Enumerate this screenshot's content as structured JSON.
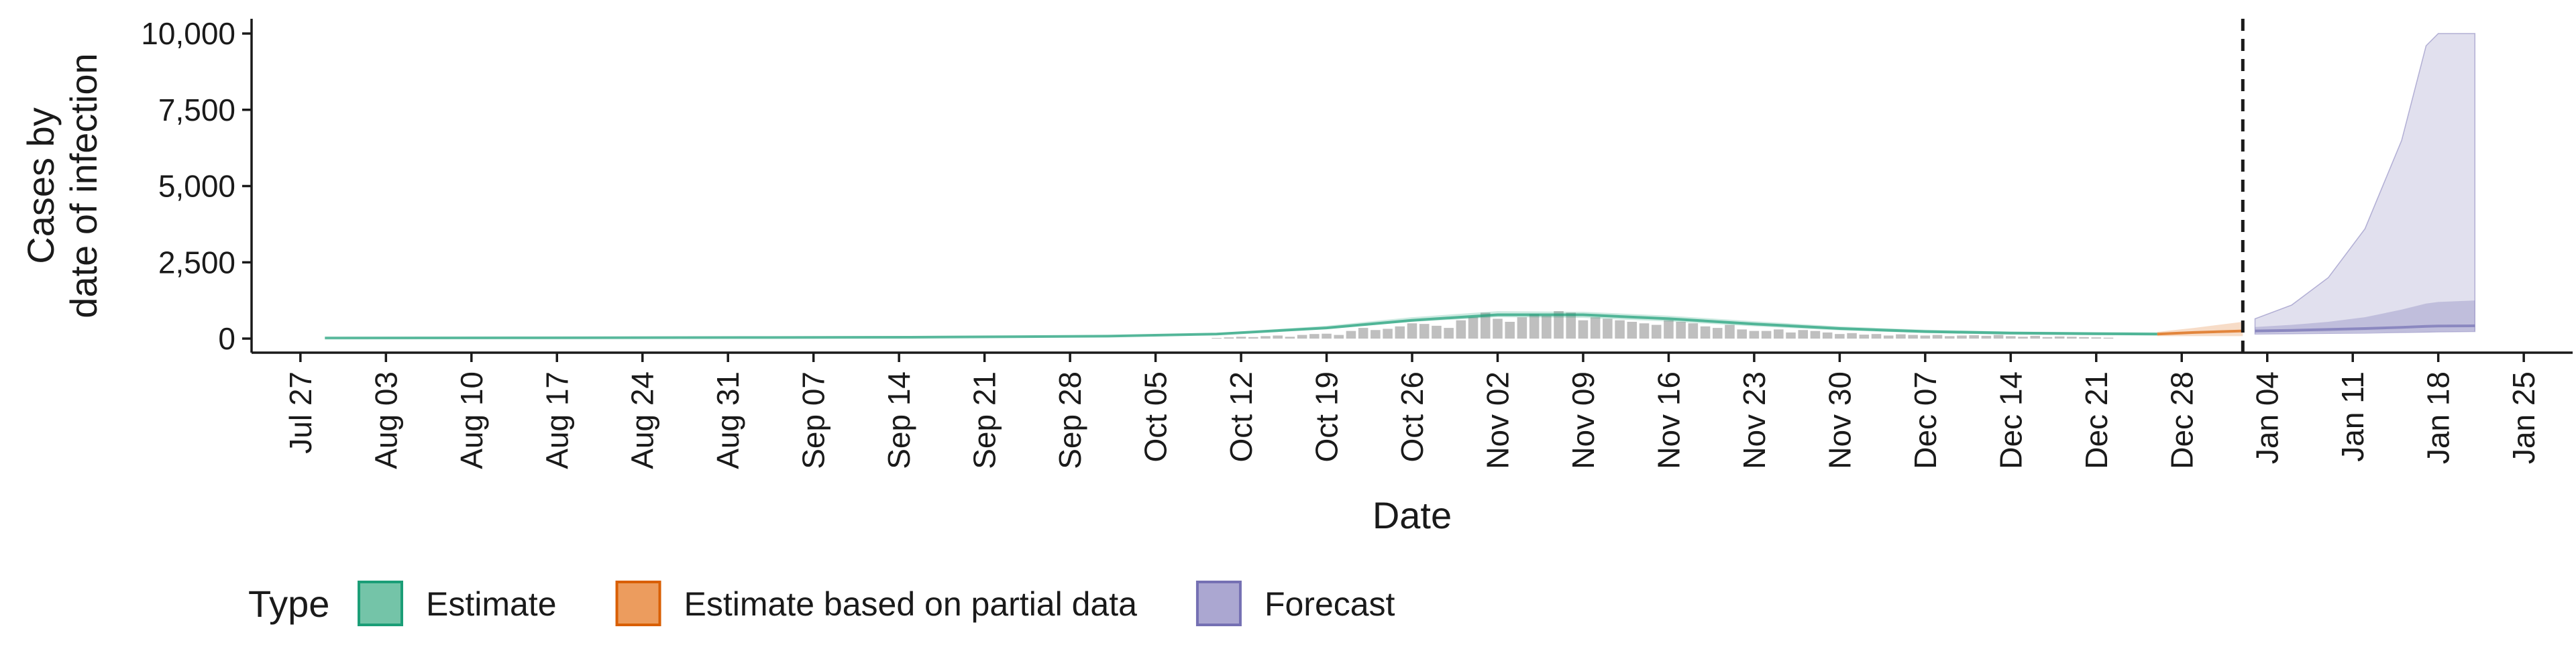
{
  "chart_data": {
    "type": "area",
    "xlabel": "Date",
    "ylabel_lines": [
      "Cases by",
      "date of infection"
    ],
    "x_domain": [
      "2020-07-23",
      "2021-01-29"
    ],
    "ylim": [
      0,
      10000
    ],
    "y_ticks": [
      0,
      2500,
      5000,
      7500,
      10000
    ],
    "y_tick_labels": [
      "0",
      "2,500",
      "5,000",
      "7,500",
      "10,000"
    ],
    "x_ticks": [
      "2020-07-27",
      "2020-08-03",
      "2020-08-10",
      "2020-08-17",
      "2020-08-24",
      "2020-08-31",
      "2020-09-07",
      "2020-09-14",
      "2020-09-21",
      "2020-09-28",
      "2020-10-05",
      "2020-10-12",
      "2020-10-19",
      "2020-10-26",
      "2020-11-02",
      "2020-11-09",
      "2020-11-16",
      "2020-11-23",
      "2020-11-30",
      "2020-12-07",
      "2020-12-14",
      "2020-12-21",
      "2020-12-28",
      "2021-01-04",
      "2021-01-11",
      "2021-01-18",
      "2021-01-25"
    ],
    "x_tick_labels": [
      "Jul 27",
      "Aug 03",
      "Aug 10",
      "Aug 17",
      "Aug 24",
      "Aug 31",
      "Sep 07",
      "Sep 14",
      "Sep 21",
      "Sep 28",
      "Oct 05",
      "Oct 12",
      "Oct 19",
      "Oct 26",
      "Nov 02",
      "Nov 09",
      "Nov 16",
      "Nov 23",
      "Nov 30",
      "Dec 07",
      "Dec 14",
      "Dec 21",
      "Dec 28",
      "Jan 04",
      "Jan 11",
      "Jan 18",
      "Jan 25"
    ],
    "forecast_start_line": "2021-01-02",
    "grid": false,
    "legend": {
      "title": "Type",
      "position": "bottom",
      "entries": [
        {
          "label": "Estimate",
          "fill": "#74c4a8",
          "stroke": "#1b9e77"
        },
        {
          "label": "Estimate based on partial data",
          "fill": "#ec9c5e",
          "stroke": "#d95f02"
        },
        {
          "label": "Forecast",
          "fill": "#aba7d1",
          "stroke": "#7570b3"
        }
      ]
    },
    "colors": {
      "estimate": "#1b9e77",
      "partial": "#d95f02",
      "forecast": "#7570b3",
      "bars": "#a9a9a9"
    },
    "reported_cases": {
      "start": "2020-10-10",
      "values": [
        20,
        40,
        60,
        50,
        80,
        100,
        60,
        120,
        150,
        160,
        120,
        250,
        350,
        280,
        320,
        400,
        500,
        480,
        420,
        350,
        600,
        700,
        850,
        650,
        550,
        700,
        800,
        750,
        900,
        850,
        600,
        700,
        650,
        600,
        550,
        500,
        450,
        600,
        550,
        500,
        400,
        350,
        450,
        300,
        250,
        250,
        300,
        200,
        280,
        250,
        200,
        150,
        180,
        130,
        150,
        100,
        140,
        120,
        100,
        120,
        80,
        100,
        110,
        90,
        120,
        80,
        60,
        90,
        50,
        70,
        60,
        50,
        40,
        30
      ]
    },
    "series": [
      {
        "name": "Estimate",
        "dates": [
          "2020-07-29",
          "2020-08-15",
          "2020-09-01",
          "2020-09-15",
          "2020-10-01",
          "2020-10-10",
          "2020-10-19",
          "2020-10-26",
          "2020-11-02",
          "2020-11-09",
          "2020-11-16",
          "2020-11-23",
          "2020-11-30",
          "2020-12-07",
          "2020-12-14",
          "2020-12-21",
          "2020-12-26"
        ],
        "median": [
          20,
          25,
          35,
          45,
          80,
          150,
          350,
          600,
          780,
          780,
          650,
          480,
          330,
          230,
          180,
          160,
          150
        ],
        "lower": [
          15,
          20,
          28,
          38,
          65,
          130,
          310,
          550,
          700,
          680,
          560,
          400,
          270,
          180,
          130,
          110,
          100
        ],
        "upper": [
          30,
          35,
          45,
          60,
          100,
          180,
          420,
          700,
          900,
          880,
          750,
          570,
          400,
          290,
          230,
          210,
          200
        ]
      },
      {
        "name": "Estimate based on partial data",
        "dates": [
          "2020-12-26",
          "2020-12-29",
          "2021-01-02"
        ],
        "median": [
          150,
          200,
          250
        ],
        "lower": [
          80,
          80,
          80
        ],
        "upper": [
          220,
          350,
          550
        ]
      },
      {
        "name": "Forecast",
        "dates": [
          "2021-01-03",
          "2021-01-06",
          "2021-01-09",
          "2021-01-12",
          "2021-01-15",
          "2021-01-17",
          "2021-01-18",
          "2021-01-21"
        ],
        "median": [
          250,
          270,
          300,
          330,
          370,
          400,
          410,
          420
        ],
        "lower": [
          150,
          160,
          170,
          180,
          200,
          210,
          220,
          230
        ],
        "upper": [
          650,
          1100,
          2000,
          3600,
          6500,
          9600,
          10000,
          10000
        ],
        "inner_lower": [
          180,
          190,
          200,
          210,
          220,
          230,
          240,
          250
        ],
        "inner_upper": [
          380,
          450,
          550,
          700,
          950,
          1150,
          1200,
          1250
        ]
      }
    ]
  }
}
